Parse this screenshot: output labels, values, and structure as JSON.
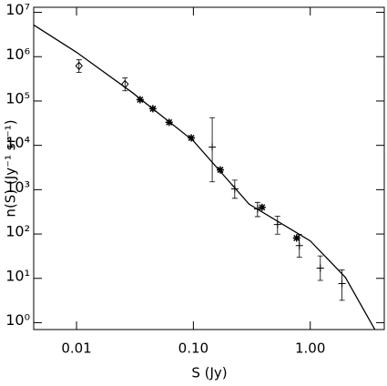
{
  "chart_data": {
    "type": "scatter",
    "x_label": "S (Jy)",
    "y_label": "n(S) (Jy⁻¹ sr⁻¹)",
    "xscale": "log",
    "yscale": "log",
    "xlim": [
      0.0043,
      4.3
    ],
    "ylim": [
      0.7,
      13000000
    ],
    "xticks": [
      0.01,
      {
        "value": 0.1,
        "label": "0.10"
      },
      {
        "value": 1,
        "label": "1.00"
      }
    ],
    "yticks": [
      {
        "value": 1,
        "label": "10⁰"
      },
      {
        "value": 10,
        "label": "10¹"
      },
      {
        "value": 100,
        "label": "10²"
      },
      {
        "value": 1000,
        "label": "10³"
      },
      {
        "value": 10000,
        "label": "10⁴"
      },
      {
        "value": 100000,
        "label": "10⁵"
      },
      {
        "value": 1000000,
        "label": "10⁶"
      },
      {
        "value": 10000000,
        "label": "10⁷"
      }
    ],
    "series": [
      {
        "marker": "diamond",
        "color": "#000000",
        "x": [
          0.0105,
          0.026
        ],
        "values": [
          620000,
          240000
        ],
        "yerr_minus": [
          180000,
          70000
        ],
        "yerr_plus": [
          230000,
          90000
        ]
      },
      {
        "marker": "asterisk",
        "color": "#000000",
        "x": [
          0.035,
          0.045,
          0.062,
          0.096,
          0.17,
          0.387,
          0.764
        ],
        "values": [
          107000,
          67000,
          33000,
          14700,
          2800,
          400,
          81
        ]
      },
      {
        "marker": "plus",
        "color": "#000000",
        "x": [
          0.145,
          0.226,
          0.354,
          0.525,
          0.807,
          1.22,
          1.87
        ],
        "values": [
          9100,
          1040,
          367,
          164,
          55,
          17,
          7.6
        ],
        "yerr_minus": [
          7600,
          400,
          120,
          65,
          25,
          8,
          4.4
        ],
        "yerr_plus": [
          33000,
          600,
          150,
          90,
          43,
          15,
          8
        ]
      }
    ],
    "model": {
      "type": "line",
      "color": "#000000",
      "x": [
        0.0043,
        0.01,
        0.03,
        0.1,
        0.3,
        1,
        2,
        3.56
      ],
      "values": [
        5200000,
        1260000,
        155000,
        12600,
        470,
        70,
        10.5,
        0.71
      ]
    }
  }
}
